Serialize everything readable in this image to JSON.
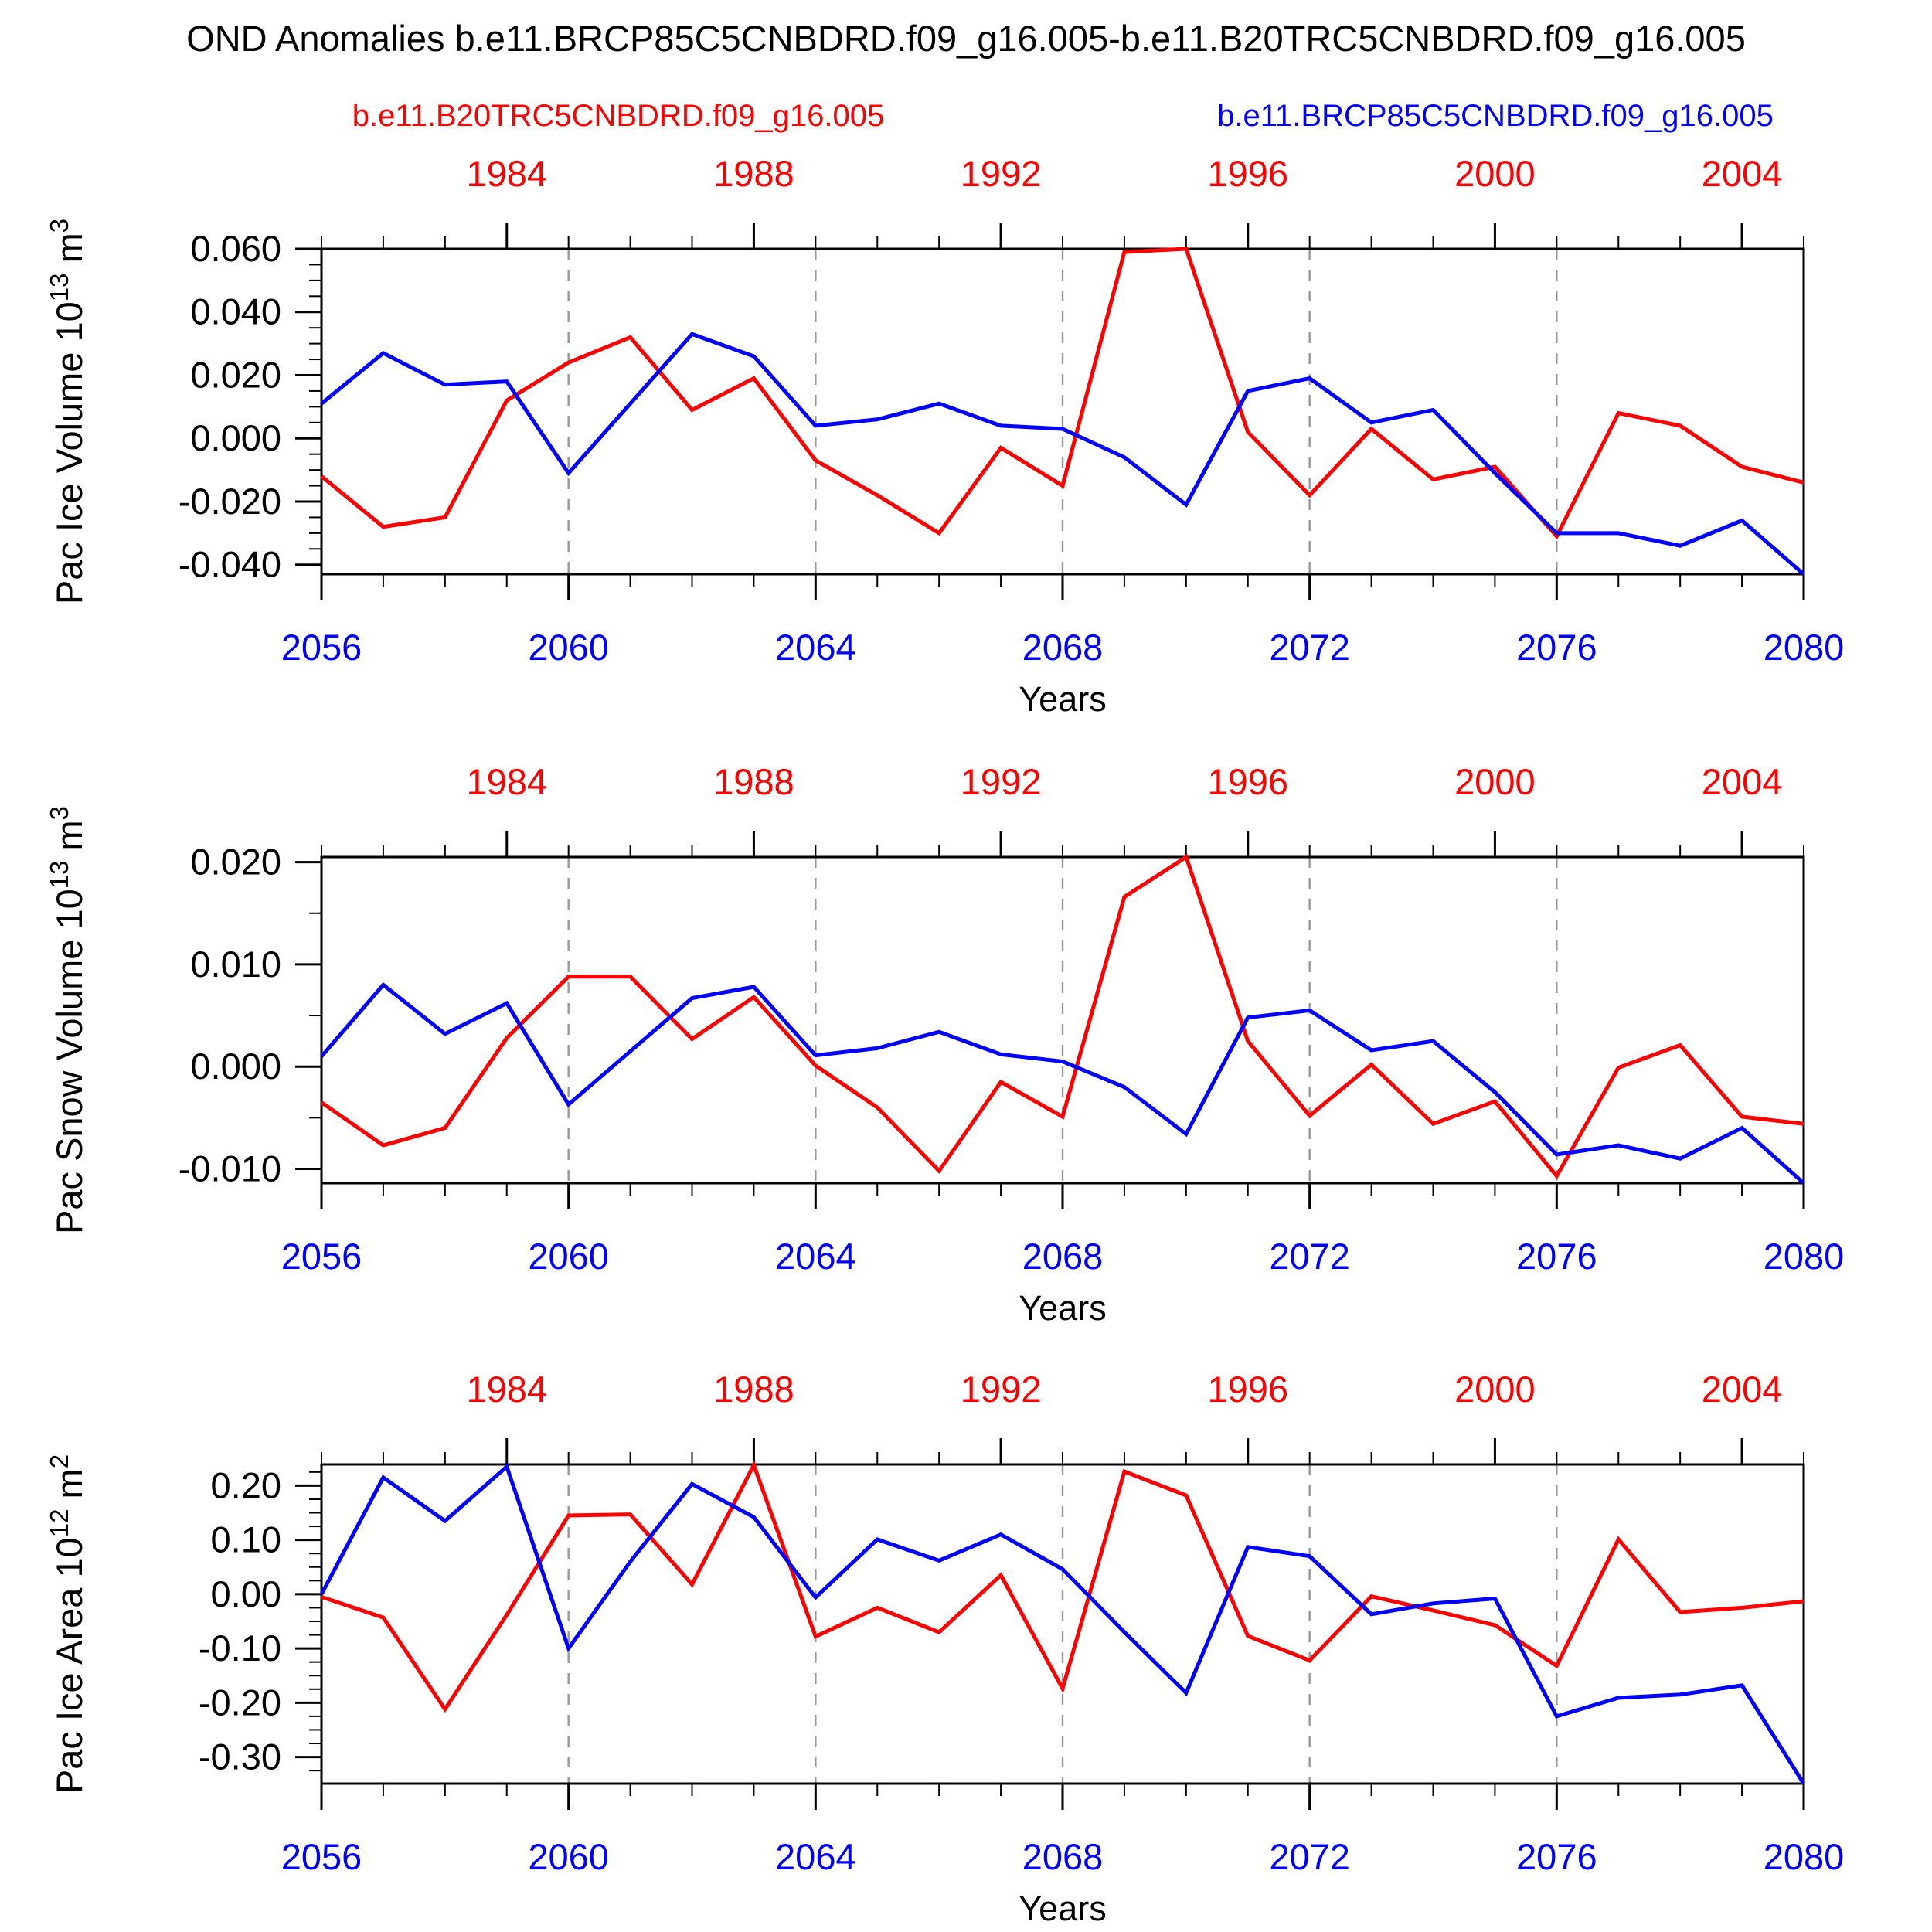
{
  "title": "OND Anomalies b.e11.BRCP85C5CNBDRD.f09_g16.005-b.e11.B20TRC5CNBDRD.f09_g16.005",
  "legend": {
    "red": {
      "label": "b.e11.B20TRC5CNBDRD.f09_g16.005",
      "color": "#ff0000"
    },
    "blue": {
      "label": "b.e11.BRCP85C5CNBDRD.f09_g16.005",
      "color": "#0000ff"
    }
  },
  "x_axis": {
    "label": "Years",
    "blue_tick_labels": [
      "2056",
      "2060",
      "2064",
      "2068",
      "2072",
      "2076",
      "2080"
    ],
    "blue_tick_years": [
      2056,
      2060,
      2064,
      2068,
      2072,
      2076,
      2080
    ],
    "red_tick_labels": [
      "1984",
      "1988",
      "1992",
      "1996",
      "2000",
      "2004"
    ],
    "red_tick_years": [
      2059,
      2063,
      2067,
      2071,
      2075,
      2079
    ],
    "dashed_grid_years": [
      2060,
      2064,
      2068,
      2072,
      2076
    ],
    "blue_label_color": "#0000ff",
    "red_label_color": "#ff0000"
  },
  "chart_data": [
    {
      "type": "line",
      "ylabel": "Pac Ice Volume 10^13 m^3",
      "ylim": [
        -0.043,
        0.06
      ],
      "yticks": [
        "0.060",
        "0.040",
        "0.020",
        "0.000",
        "-0.020",
        "-0.040"
      ],
      "y_minor_step": 0.005,
      "x": [
        2056,
        2057,
        2058,
        2059,
        2060,
        2061,
        2062,
        2063,
        2064,
        2065,
        2066,
        2067,
        2068,
        2069,
        2070,
        2071,
        2072,
        2073,
        2074,
        2075,
        2076,
        2077,
        2078,
        2079,
        2080
      ],
      "series": [
        {
          "name": "b.e11.B20TRC5CNBDRD.f09_g16.005",
          "color": "#ff0000",
          "values": [
            -0.012,
            -0.028,
            -0.025,
            0.012,
            0.024,
            0.032,
            0.009,
            0.019,
            -0.007,
            -0.018,
            -0.03,
            -0.003,
            -0.015,
            0.059,
            0.06,
            0.002,
            -0.018,
            0.003,
            -0.013,
            -0.009,
            -0.031,
            0.008,
            0.004,
            -0.009,
            -0.014
          ]
        },
        {
          "name": "b.e11.BRCP85C5CNBDRD.f09_g16.005",
          "color": "#0000ff",
          "values": [
            0.011,
            0.027,
            0.017,
            0.018,
            -0.011,
            0.011,
            0.033,
            0.026,
            0.004,
            0.006,
            0.011,
            0.004,
            0.003,
            -0.006,
            -0.021,
            0.015,
            0.019,
            0.005,
            0.009,
            -0.011,
            -0.03,
            -0.03,
            -0.034,
            -0.026,
            -0.043
          ]
        }
      ]
    },
    {
      "type": "line",
      "ylabel": "Pac Snow Volume 10^13 m^3",
      "ylim": [
        -0.0114,
        0.0205
      ],
      "yticks": [
        "0.020",
        "0.010",
        "0.000",
        "-0.010"
      ],
      "y_minor_step": 0.005,
      "x": [
        2056,
        2057,
        2058,
        2059,
        2060,
        2061,
        2062,
        2063,
        2064,
        2065,
        2066,
        2067,
        2068,
        2069,
        2070,
        2071,
        2072,
        2073,
        2074,
        2075,
        2076,
        2077,
        2078,
        2079,
        2080
      ],
      "series": [
        {
          "name": "b.e11.B20TRC5CNBDRD.f09_g16.005",
          "color": "#ff0000",
          "values": [
            -0.0035,
            -0.0077,
            -0.006,
            0.0028,
            0.0088,
            0.0088,
            0.0027,
            0.0068,
            0.0001,
            -0.004,
            -0.0102,
            -0.0015,
            -0.0049,
            0.0166,
            0.0205,
            0.0025,
            -0.0048,
            0.0002,
            -0.0056,
            -0.0034,
            -0.0107,
            -0.0001,
            0.0021,
            -0.0049,
            -0.0056
          ]
        },
        {
          "name": "b.e11.BRCP85C5CNBDRD.f09_g16.005",
          "color": "#0000ff",
          "values": [
            0.001,
            0.008,
            0.0032,
            0.0062,
            -0.0037,
            0.0015,
            0.0067,
            0.0078,
            0.0011,
            0.0018,
            0.0034,
            0.0012,
            0.0005,
            -0.002,
            -0.0066,
            0.0048,
            0.0055,
            0.0016,
            0.0025,
            -0.0025,
            -0.0086,
            -0.0077,
            -0.009,
            -0.006,
            -0.0114
          ]
        }
      ]
    },
    {
      "type": "line",
      "ylabel": "Pac Ice Area 10^12 m^2",
      "ylim": [
        -0.349,
        0.239
      ],
      "yticks": [
        "0.20",
        "0.10",
        "0.00",
        "-0.10",
        "-0.20",
        "-0.30"
      ],
      "y_minor_step": 0.025,
      "x": [
        2056,
        2057,
        2058,
        2059,
        2060,
        2061,
        2062,
        2063,
        2064,
        2065,
        2066,
        2067,
        2068,
        2069,
        2070,
        2071,
        2072,
        2073,
        2074,
        2075,
        2076,
        2077,
        2078,
        2079,
        2080
      ],
      "series": [
        {
          "name": "b.e11.B20TRC5CNBDRD.f09_g16.005",
          "color": "#ff0000",
          "values": [
            -0.005,
            -0.043,
            -0.212,
            -0.038,
            0.145,
            0.147,
            0.018,
            0.238,
            -0.078,
            -0.025,
            -0.07,
            0.035,
            -0.174,
            0.226,
            0.182,
            -0.077,
            -0.122,
            -0.004,
            -0.03,
            -0.057,
            -0.132,
            0.101,
            -0.033,
            -0.025,
            -0.013
          ]
        },
        {
          "name": "b.e11.BRCP85C5CNBDRD.f09_g16.005",
          "color": "#0000ff",
          "values": [
            0.0,
            0.215,
            0.135,
            0.235,
            -0.1,
            0.06,
            0.203,
            0.142,
            -0.006,
            0.101,
            0.062,
            0.11,
            0.046,
            -0.07,
            -0.182,
            0.087,
            0.07,
            -0.037,
            -0.017,
            -0.008,
            -0.225,
            -0.191,
            -0.185,
            -0.168,
            -0.349
          ]
        }
      ]
    }
  ]
}
